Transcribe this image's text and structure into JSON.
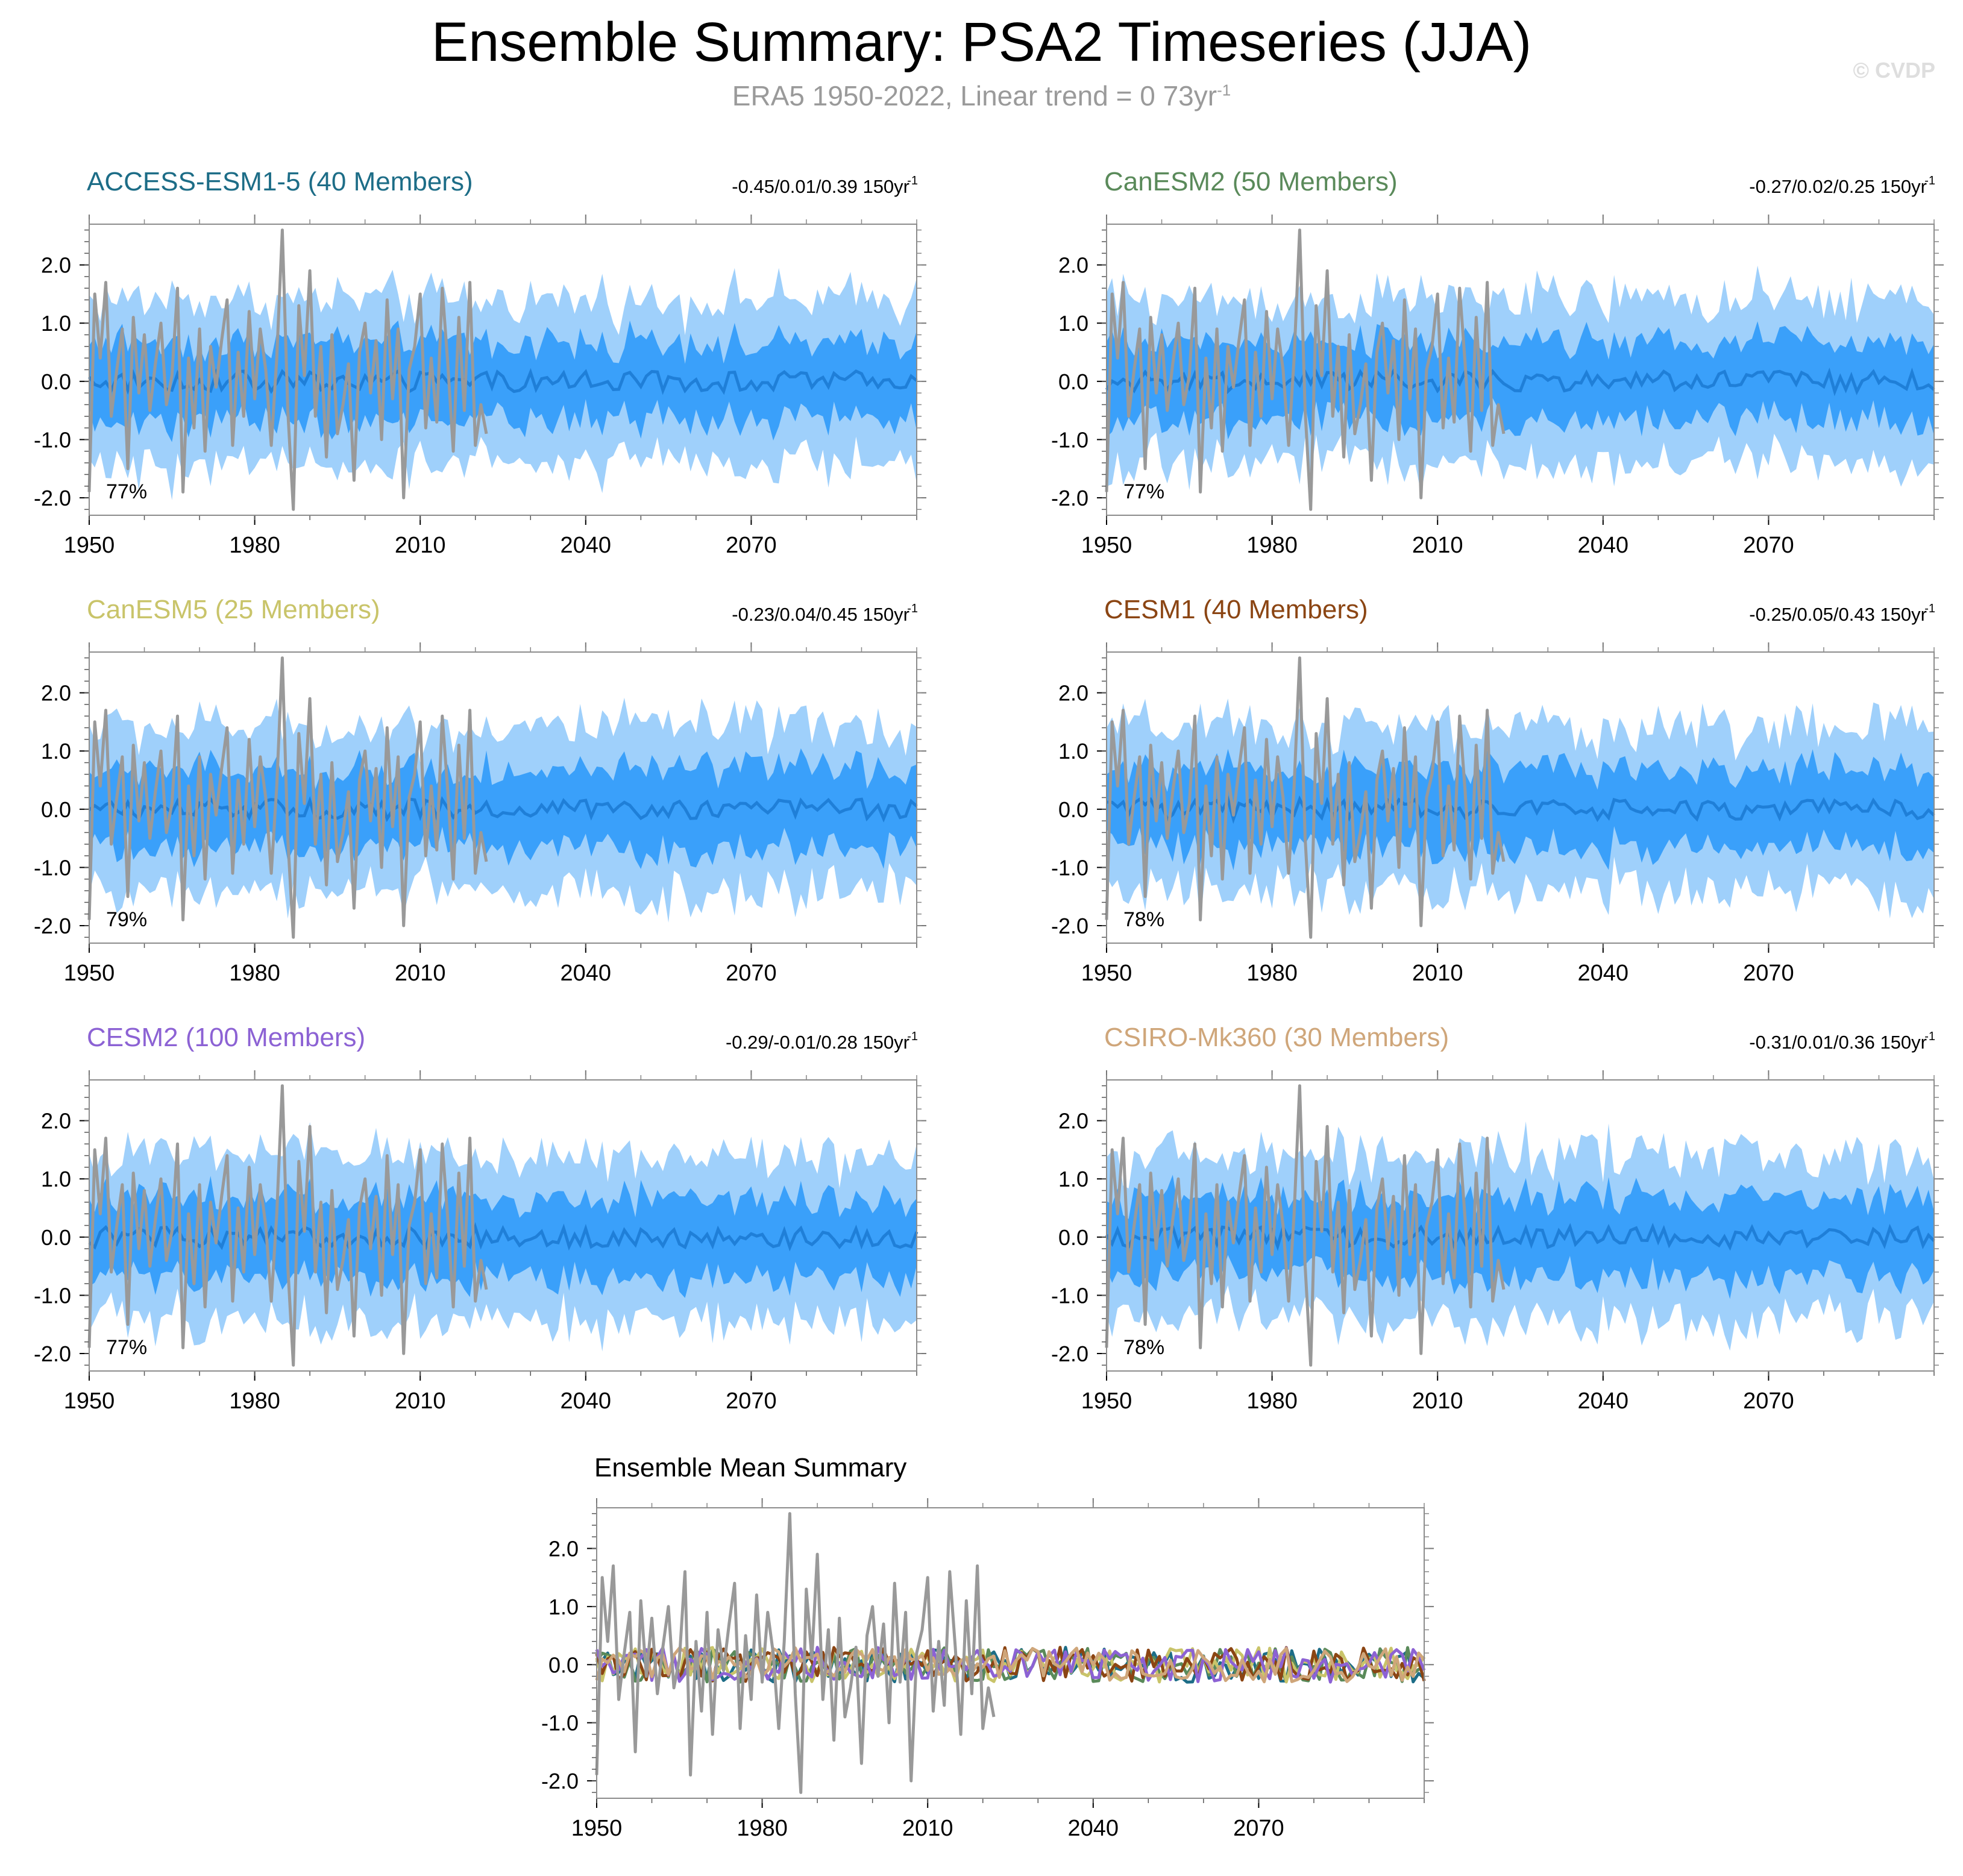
{
  "header": {
    "title": "Ensemble Summary: PSA2 Timeseries (JJA)",
    "subtitle_main": "ERA5 1950-2022, Linear trend = 0 73yr",
    "subtitle_exp": "-1",
    "copyright": "© CVDP"
  },
  "colors": {
    "band_outer": "#9fd0fb",
    "band_inner": "#3aa0fa",
    "ensemble_mean": "#1f7fd8",
    "observations": "#999999",
    "frame": "#8c8c8c"
  },
  "chart_data": {
    "type": "line",
    "x_range": [
      1950,
      2100
    ],
    "ylim": [
      -2.3,
      2.7
    ],
    "y_ticks": [
      -2.0,
      -1.0,
      0.0,
      1.0,
      2.0
    ],
    "y_tick_labels": [
      "-2.0",
      "-1.0",
      "0.0",
      "1.0",
      "2.0"
    ],
    "x_ticks": [
      1950,
      1980,
      2010,
      2040,
      2070
    ],
    "x_tick_labels": [
      "1950",
      "1980",
      "2010",
      "2040",
      "2070"
    ],
    "observations": {
      "name": "ERA5",
      "years": [
        1950,
        2022
      ],
      "values": [
        -1.9,
        1.5,
        0.4,
        1.7,
        -0.6,
        0.2,
        0.9,
        -1.5,
        1.1,
        -0.2,
        0.8,
        -0.5,
        0.3,
        1.0,
        -0.4,
        0.1,
        1.6,
        -1.9,
        0.4,
        -0.8,
        0.9,
        -1.2,
        0.6,
        -0.1,
        0.7,
        1.4,
        -1.1,
        0.5,
        -0.6,
        1.2,
        -0.3,
        0.9,
        0.2,
        -1.1,
        0.4,
        2.6,
        -0.5,
        -2.2,
        1.3,
        0.1,
        1.9,
        -0.6,
        0.6,
        -1.3,
        0.8,
        -0.9,
        -0.4,
        0.3,
        -1.7,
        0.5,
        1.0,
        -0.2,
        0.7,
        -1.0,
        1.4,
        -0.3,
        0.9,
        -2.0,
        0.2,
        0.6,
        1.5,
        -0.8,
        0.4,
        -0.7,
        1.6,
        0.3,
        -1.2,
        1.1,
        -0.5,
        1.7,
        -1.1,
        -0.4,
        -0.9
      ]
    },
    "panels": [
      {
        "model": "ACCESS-ESM1-5",
        "members": "40 Members",
        "label": "ACCESS-ESM1-5 (40 Members)",
        "label_color": "#1d6d87",
        "stats": "-0.45/0.01/0.39 150yr",
        "stats_exp": "-1",
        "percent": "77%",
        "inner_band": [
          -0.7,
          0.7
        ],
        "outer_band": [
          -1.4,
          1.4
        ]
      },
      {
        "model": "CanESM2",
        "members": "50 Members",
        "label": "CanESM2 (50 Members)",
        "label_color": "#5a8a5a",
        "stats": "-0.27/0.02/0.25 150yr",
        "stats_exp": "-1",
        "percent": "77%",
        "inner_band": [
          -0.7,
          0.7
        ],
        "outer_band": [
          -1.4,
          1.4
        ]
      },
      {
        "model": "CanESM5",
        "members": "25 Members",
        "label": "CanESM5 (25 Members)",
        "label_color": "#c9c46a",
        "stats": "-0.23/0.04/0.45 150yr",
        "stats_exp": "-1",
        "percent": "79%",
        "inner_band": [
          -0.75,
          0.75
        ],
        "outer_band": [
          -1.5,
          1.5
        ]
      },
      {
        "model": "CESM1",
        "members": "40 Members",
        "label": "CESM1 (40 Members)",
        "label_color": "#8b4513",
        "stats": "-0.25/0.05/0.43 150yr",
        "stats_exp": "-1",
        "percent": "78%",
        "inner_band": [
          -0.7,
          0.7
        ],
        "outer_band": [
          -1.45,
          1.45
        ]
      },
      {
        "model": "CESM2",
        "members": "100 Members",
        "label": "CESM2 (100 Members)",
        "label_color": "#8c62d4",
        "stats": "-0.29/-0.01/0.28 150yr",
        "stats_exp": "-1",
        "percent": "77%",
        "inner_band": [
          -0.7,
          0.7
        ],
        "outer_band": [
          -1.35,
          1.35
        ]
      },
      {
        "model": "CSIRO-Mk360",
        "members": "30 Members",
        "label": "CSIRO-Mk360 (30 Members)",
        "label_color": "#cfa67a",
        "stats": "-0.31/0.01/0.36 150yr",
        "stats_exp": "-1",
        "percent": "78%",
        "inner_band": [
          -0.75,
          0.75
        ],
        "outer_band": [
          -1.45,
          1.45
        ]
      }
    ],
    "summary": {
      "title": "Ensemble Mean Summary",
      "series_colors": [
        "#1d6d87",
        "#5a8a5a",
        "#c9c46a",
        "#8b4513",
        "#8c62d4",
        "#cfa67a"
      ],
      "amplitude": 0.3
    }
  }
}
